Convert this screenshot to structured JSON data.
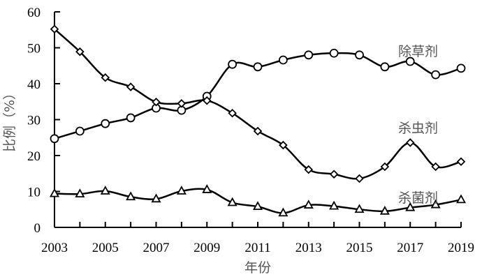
{
  "chart_data": {
    "type": "line",
    "xlabel": "年份",
    "ylabel": "比例（%）",
    "ylim": [
      0,
      60
    ],
    "xlim": [
      2003,
      2019
    ],
    "yticks": [
      0,
      10,
      20,
      30,
      40,
      50,
      60
    ],
    "xticks": [
      2003,
      2005,
      2007,
      2009,
      2011,
      2013,
      2015,
      2017,
      2019
    ],
    "grid": false,
    "x": [
      2003,
      2004,
      2005,
      2006,
      2007,
      2008,
      2009,
      2010,
      2011,
      2012,
      2013,
      2014,
      2015,
      2016,
      2017,
      2018,
      2019
    ],
    "series": [
      {
        "name": "除草剂",
        "marker": "circle",
        "values": [
          24.7,
          26.8,
          28.9,
          30.5,
          33.2,
          32.6,
          36.5,
          45.4,
          44.7,
          46.6,
          48.0,
          48.5,
          48.0,
          44.7,
          46.2,
          42.5,
          44.3
        ]
      },
      {
        "name": "杀虫剂",
        "marker": "diamond",
        "values": [
          55.2,
          48.9,
          41.7,
          39.1,
          34.9,
          34.5,
          35.3,
          31.8,
          26.8,
          22.9,
          16.1,
          14.8,
          13.6,
          16.9,
          23.6,
          16.9,
          18.3
        ]
      },
      {
        "name": "杀菌剂",
        "marker": "triangle",
        "values": [
          9.4,
          9.3,
          10.1,
          8.5,
          7.9,
          10.1,
          10.5,
          6.9,
          5.8,
          4.0,
          6.2,
          5.9,
          5.0,
          4.5,
          5.5,
          6.3,
          7.7
        ]
      }
    ]
  }
}
